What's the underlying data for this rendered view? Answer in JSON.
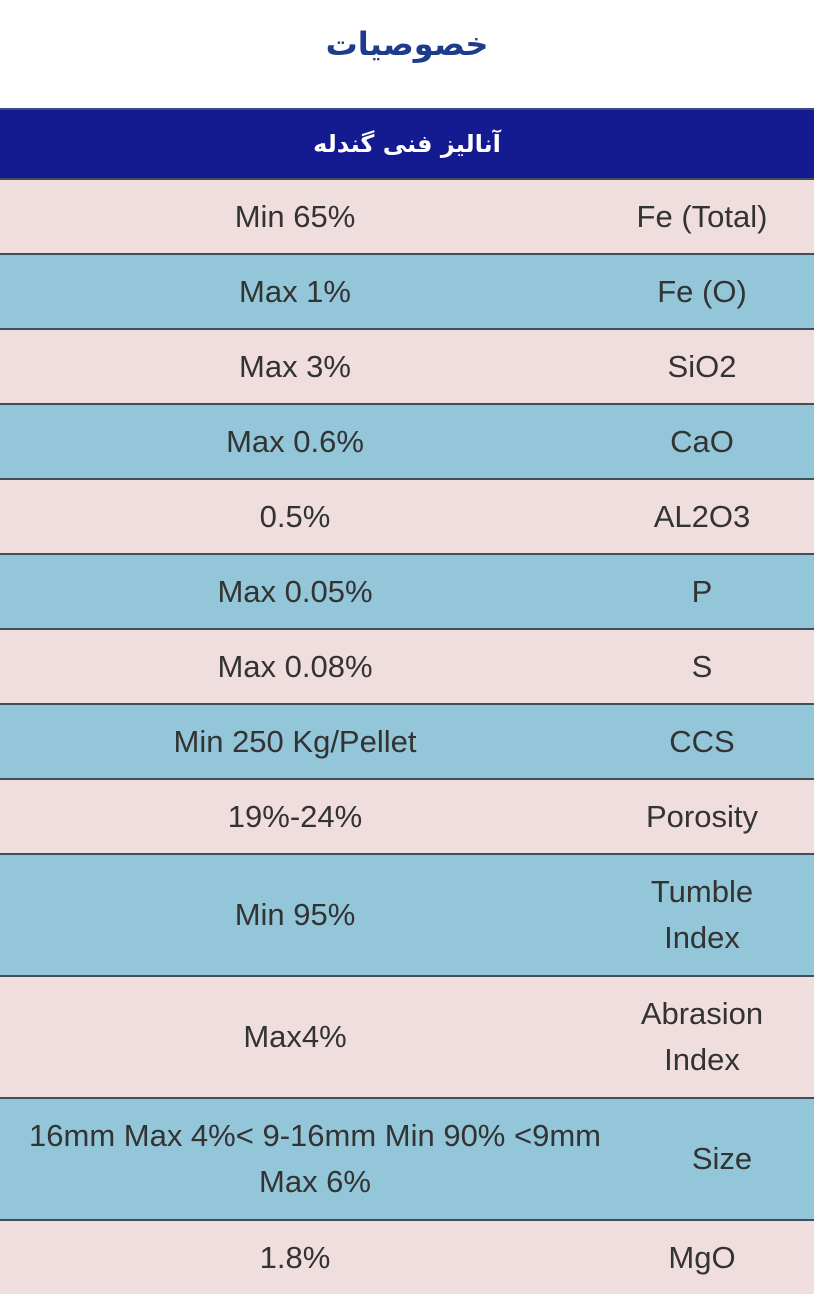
{
  "title": "خصوصیات",
  "table": {
    "header": "آنالیز فنی گندله",
    "rows": [
      {
        "property": "Fe (Total)",
        "value": "Min 65%"
      },
      {
        "property": "Fe (O)",
        "value": "Max 1%"
      },
      {
        "property": "SiO2",
        "value": "Max 3%"
      },
      {
        "property": "CaO",
        "value": "Max 0.6%"
      },
      {
        "property": "AL2O3",
        "value": "0.5%"
      },
      {
        "property": "P",
        "value": "Max 0.05%"
      },
      {
        "property": "S",
        "value": "Max 0.08%"
      },
      {
        "property": "CCS",
        "value": "Min 250 Kg/Pellet"
      },
      {
        "property": "Porosity",
        "value": "19%-24%"
      },
      {
        "property": "Tumble Index",
        "value": "Min 95%"
      },
      {
        "property": "Abrasion Index",
        "value": "Max4%"
      },
      {
        "property": "Size",
        "value": "16mm Max 4%< 9-16mm Min 90% <9mm Max 6%"
      },
      {
        "property": "MgO",
        "value": "1.8%"
      }
    ]
  },
  "colors": {
    "header_bg": "#141a8f",
    "row_pink": "#f0dedf",
    "row_blue": "#92c6d8",
    "title": "#1d3c8c"
  }
}
